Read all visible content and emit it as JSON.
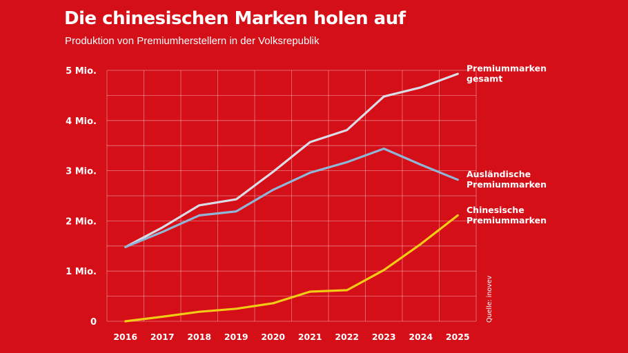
{
  "chart_data": {
    "type": "line",
    "title": "Die chinesischen Marken holen auf",
    "subtitle": "Produktion von Premiumherstellern in der Volksrepublik",
    "x": [
      2016,
      2017,
      2018,
      2019,
      2020,
      2021,
      2022,
      2023,
      2024,
      2025
    ],
    "x_tick_labels": [
      "2016",
      "2017",
      "2018",
      "2019",
      "2020",
      "2021",
      "2022",
      "2023",
      "2024",
      "2025"
    ],
    "y_ticks": [
      {
        "value": 0,
        "label": "0"
      },
      {
        "value": 1,
        "label": "1 Mio."
      },
      {
        "value": 2,
        "label": "2 Mio."
      },
      {
        "value": 3,
        "label": "3 Mio."
      },
      {
        "value": 4,
        "label": "4 Mio."
      },
      {
        "value": 5,
        "label": "5 Mio."
      }
    ],
    "ylim": [
      0,
      5
    ],
    "grid": true,
    "series": [
      {
        "key": "gesamt",
        "label_lines": [
          "Premiummarken",
          "gesamt"
        ],
        "color": "#d9dde8",
        "values": [
          1.48,
          1.87,
          2.31,
          2.43,
          2.98,
          3.57,
          3.81,
          4.48,
          4.66,
          4.93
        ]
      },
      {
        "key": "auslaendisch",
        "label_lines": [
          "Ausländische",
          "Premiummarken"
        ],
        "color": "#8fb6d8",
        "values": [
          1.48,
          1.78,
          2.11,
          2.19,
          2.62,
          2.96,
          3.17,
          3.44,
          3.12,
          2.82
        ]
      },
      {
        "key": "chinesisch",
        "label_lines": [
          "Chinesische",
          "Premiummarken"
        ],
        "color": "#f2cb14",
        "values": [
          0.0,
          0.09,
          0.19,
          0.25,
          0.36,
          0.59,
          0.62,
          1.02,
          1.54,
          2.11
        ]
      }
    ],
    "source": "Quelle: inovev"
  }
}
